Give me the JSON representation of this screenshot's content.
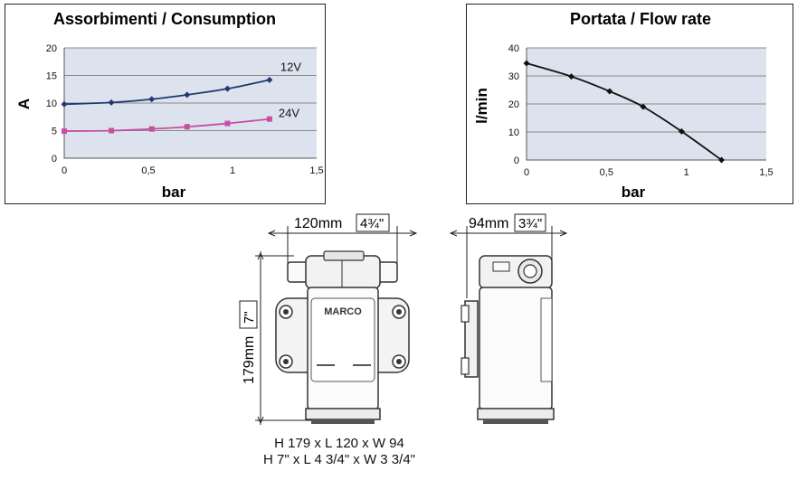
{
  "chart_data": [
    {
      "type": "line",
      "title": "Assorbimenti / Consumption",
      "xlabel": "bar",
      "ylabel": "A",
      "xlim": [
        0,
        1.5
      ],
      "ylim": [
        0,
        20
      ],
      "x_ticks": [
        "0",
        "0,5",
        "1",
        "1,5"
      ],
      "y_ticks": [
        "0",
        "5",
        "10",
        "15",
        "20"
      ],
      "grid": true,
      "series": [
        {
          "name": "12V",
          "color": "#1f3a6e",
          "marker": "diamond",
          "x": [
            0,
            0.28,
            0.52,
            0.73,
            0.97,
            1.22
          ],
          "y": [
            9.8,
            10.1,
            10.7,
            11.5,
            12.6,
            14.2
          ]
        },
        {
          "name": "24V",
          "color": "#c54fa2",
          "marker": "square",
          "x": [
            0,
            0.28,
            0.52,
            0.73,
            0.97,
            1.22
          ],
          "y": [
            4.9,
            5.0,
            5.3,
            5.7,
            6.3,
            7.1
          ]
        }
      ]
    },
    {
      "type": "line",
      "title": "Portata / Flow rate",
      "xlabel": "bar",
      "ylabel": "l/min",
      "xlim": [
        0,
        1.5
      ],
      "ylim": [
        0,
        40
      ],
      "x_ticks": [
        "0",
        "0,5",
        "1",
        "1,5"
      ],
      "y_ticks": [
        "0",
        "10",
        "20",
        "30",
        "40"
      ],
      "grid": true,
      "series": [
        {
          "color": "#111111",
          "marker": "diamond",
          "x": [
            0,
            0.28,
            0.52,
            0.73,
            0.97,
            1.22
          ],
          "y": [
            34.5,
            29.8,
            24.5,
            19.0,
            10.2,
            0
          ]
        }
      ]
    }
  ],
  "dimensions": {
    "width_label": "120mm",
    "width_inch": "4¾\"",
    "depth_label": "94mm",
    "depth_inch": "3¾\"",
    "height_label": "179mm",
    "height_inch": "7\""
  },
  "product": {
    "brand": "MARCO"
  },
  "footer": {
    "line1": "H 179 x L 120 x W 94",
    "line2": "H 7\" x L 4 3/4\" x W 3 3/4\""
  }
}
